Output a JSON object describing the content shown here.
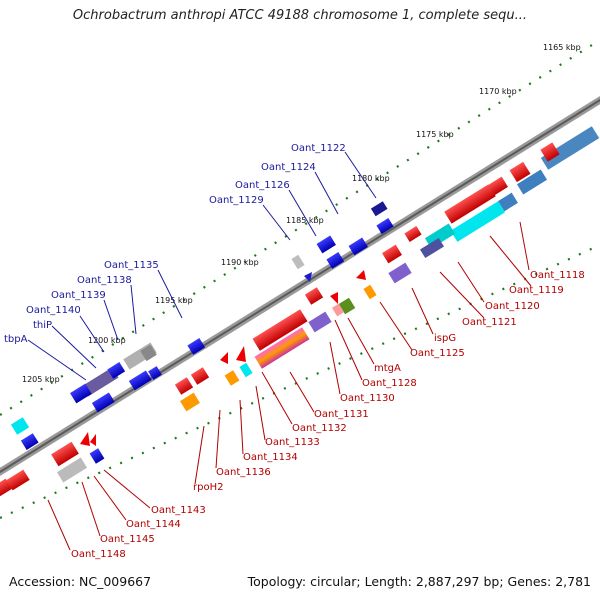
{
  "title": "Ochrobactrum anthropi ATCC 49188 chromosome 1, complete sequ...",
  "footer": {
    "accession": "Accession: NC_009667",
    "summary": "Topology: circular; Length: 2,887,297 bp; Genes: 2,781"
  },
  "kbp_labels": [
    "1165 kbp",
    "1170 kbp",
    "1175 kbp",
    "1180 kbp",
    "1185 kbp",
    "1190 kbp",
    "1195 kbp",
    "1200 kbp",
    "1205 kbp"
  ],
  "blue_labels": [
    "Oant_1122",
    "Oant_1124",
    "Oant_1126",
    "Oant_1129",
    "Oant_1135",
    "Oant_1138",
    "Oant_1139",
    "Oant_1140",
    "thiP",
    "tbpA"
  ],
  "red_labels": [
    "Oant_1118",
    "Oant_1119",
    "Oant_1120",
    "Oant_1121",
    "ispG",
    "Oant_1125",
    "mtgA",
    "Oant_1128",
    "Oant_1130",
    "Oant_1131",
    "Oant_1132",
    "Oant_1133",
    "Oant_1134",
    "Oant_1136",
    "rpoH2",
    "Oant_1143",
    "Oant_1144",
    "Oant_1145",
    "Oant_1148"
  ],
  "colors": {
    "forward_gene": "#ee0000",
    "reverse_gene": "#1a1ad0",
    "backbone": "#808080",
    "tick": "#1f7a1f"
  }
}
